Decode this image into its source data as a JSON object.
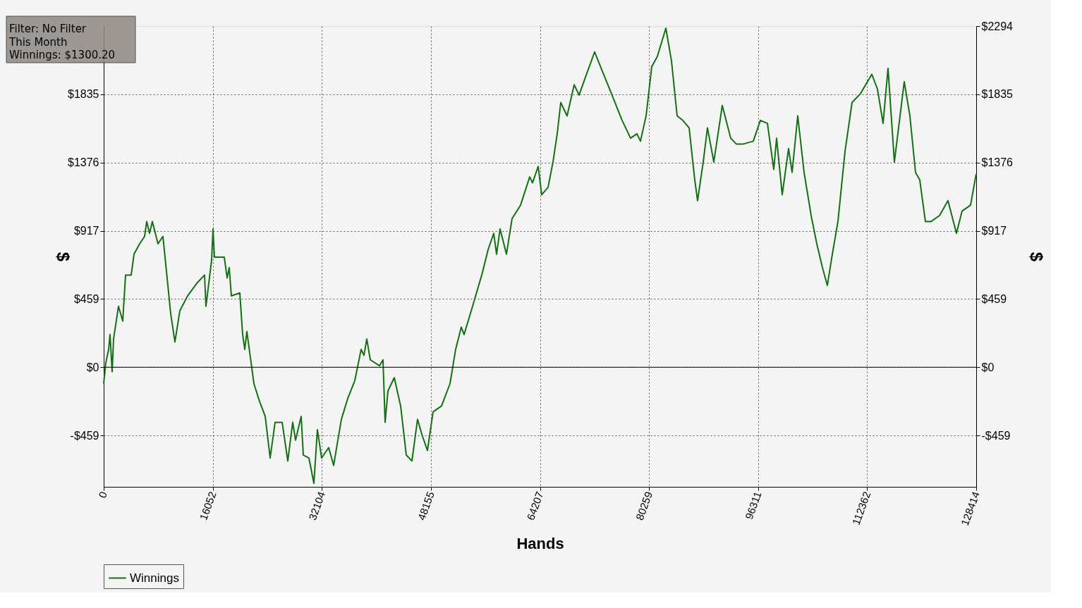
{
  "chart_data": {
    "type": "line",
    "xlabel": "Hands",
    "ylabel": "$",
    "y2label": "$",
    "annotations": [
      "Filter: No Filter",
      "This Month",
      "Winnings: $1300.20"
    ],
    "x": [
      0,
      311,
      727,
      934,
      1246,
      1453,
      2180,
      2803,
      3218,
      4049,
      4464,
      5294,
      6021,
      6332,
      6748,
      7163,
      7993,
      8720,
      9447,
      9862,
      10485,
      11211,
      12353,
      13807,
      14845,
      15052,
      15883,
      16091,
      16298,
      17752,
      18167,
      18478,
      18790,
      20035,
      20451,
      20762,
      21073,
      22112,
      22942,
      23772,
      24499,
      25226,
      26264,
      27094,
      27821,
      28236,
      29067,
      29378,
      30209,
      30935,
      31454,
      32077,
      33115,
      33842,
      34984,
      35918,
      36956,
      37891,
      38306,
      38721,
      39240,
      40590,
      41109,
      41420,
      41835,
      42770,
      43704,
      44534,
      45365,
      46195,
      46818,
      47649,
      48479,
      49725,
      50971,
      51801,
      52632,
      53047,
      54293,
      55642,
      56576,
      57407,
      57822,
      58341,
      59276,
      60106,
      61352,
      62701,
      63116,
      63947,
      64466,
      65400,
      66127,
      66750,
      67269,
      68203,
      69241,
      69968,
      70902,
      72252,
      73394,
      74639,
      76300,
      77546,
      78480,
      79000,
      79830,
      80660,
      81491,
      82737,
      83567,
      84398,
      85228,
      86162,
      86993,
      87408,
      88239,
      88861,
      89796,
      91041,
      92287,
      93118,
      94052,
      95609,
      96647,
      97685,
      98620,
      99035,
      99865,
      100800,
      101319,
      102149,
      103083,
      104121,
      104952,
      105782,
      106509,
      107236,
      108066,
      109104,
      110142,
      111388,
      113049,
      113880,
      114710,
      115437,
      116371,
      117824,
      118655,
      119485,
      120108,
      120939,
      121769,
      123015,
      124261,
      125506,
      126337,
      127582,
      128414
    ],
    "series": [
      {
        "name": "Winnings",
        "color": "#137113",
        "values": [
          -110,
          30,
          120,
          220,
          -30,
          190,
          410,
          310,
          620,
          620,
          760,
          830,
          880,
          980,
          900,
          980,
          830,
          880,
          550,
          360,
          170,
          380,
          480,
          570,
          620,
          410,
          720,
          930,
          740,
          740,
          600,
          670,
          480,
          500,
          220,
          120,
          240,
          -110,
          -230,
          -330,
          -610,
          -370,
          -370,
          -630,
          -370,
          -490,
          -330,
          -590,
          -610,
          -780,
          -420,
          -610,
          -540,
          -660,
          -350,
          -210,
          -90,
          120,
          80,
          190,
          50,
          10,
          50,
          -370,
          -160,
          -70,
          -260,
          -590,
          -630,
          -350,
          -450,
          -560,
          -300,
          -260,
          -110,
          120,
          270,
          220,
          410,
          620,
          790,
          900,
          760,
          930,
          760,
          1000,
          1090,
          1280,
          1240,
          1350,
          1160,
          1210,
          1380,
          1570,
          1780,
          1690,
          1900,
          1830,
          1950,
          2120,
          1990,
          1850,
          1660,
          1540,
          1570,
          1520,
          1690,
          2020,
          2090,
          2280,
          2060,
          1690,
          1660,
          1610,
          1260,
          1120,
          1380,
          1610,
          1380,
          1760,
          1540,
          1500,
          1500,
          1520,
          1660,
          1640,
          1330,
          1540,
          1160,
          1470,
          1310,
          1690,
          1310,
          1020,
          830,
          670,
          550,
          760,
          980,
          1450,
          1780,
          1840,
          1970,
          1870,
          1640,
          2010,
          1380,
          1920,
          1690,
          1310,
          1260,
          980,
          980,
          1020,
          1120,
          900,
          1050,
          1090,
          1300
        ]
      }
    ],
    "xlim": [
      0,
      128414
    ],
    "xticks": [
      0,
      16052,
      32104,
      48155,
      64207,
      80259,
      96311,
      112362,
      128414
    ],
    "ylim": [
      -804,
      2294
    ],
    "yticks": [
      {
        "value": -459,
        "label": "-$459"
      },
      {
        "value": 0,
        "label": "$0"
      },
      {
        "value": 459,
        "label": "$459"
      },
      {
        "value": 917,
        "label": "$917"
      },
      {
        "value": 1376,
        "label": "$1376"
      },
      {
        "value": 1835,
        "label": "$1835"
      }
    ],
    "y2lim": [
      -804,
      2294
    ],
    "y2ticks": [
      {
        "value": -459,
        "label": "-$459"
      },
      {
        "value": 0,
        "label": "$0"
      },
      {
        "value": 459,
        "label": "$459"
      },
      {
        "value": 917,
        "label": "$917"
      },
      {
        "value": 1376,
        "label": "$1376"
      },
      {
        "value": 1835,
        "label": "$1835"
      },
      {
        "value": 2294,
        "label": "$2294"
      }
    ],
    "ref_lines": [
      {
        "axis": "y",
        "value": 0,
        "color": "#000000",
        "line_style": "solid"
      }
    ],
    "grid": true,
    "legend": "bottom left",
    "marker": "none",
    "line_style": "solid"
  }
}
